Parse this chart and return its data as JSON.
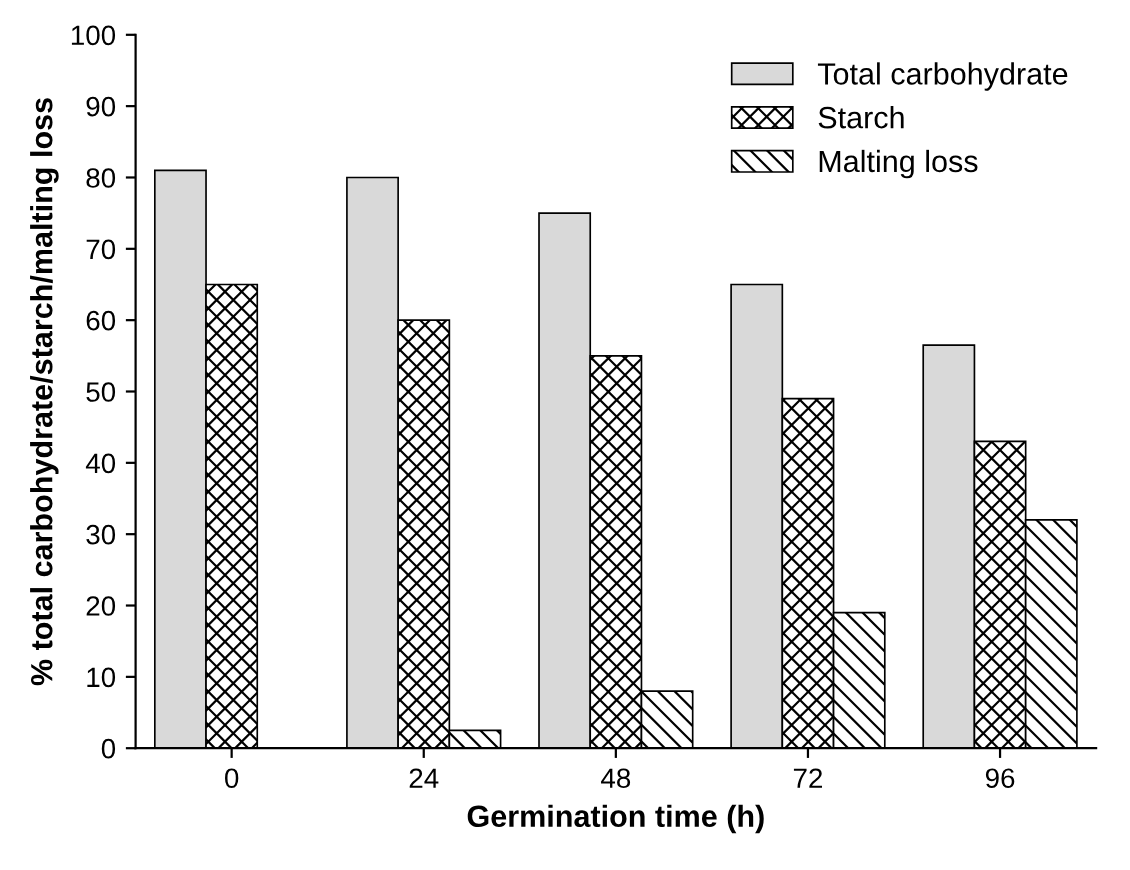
{
  "chart_data": {
    "type": "bar",
    "xlabel": "Germination time (h)",
    "ylabel": "% total carbohydrate/starch/malting loss",
    "categories": [
      "0",
      "24",
      "48",
      "72",
      "96"
    ],
    "series": [
      {
        "name": "Total carbohydrate",
        "color": "#d9d9d9",
        "values": [
          81,
          80,
          75,
          65,
          56.5
        ]
      },
      {
        "name": "Starch",
        "color": "#000000",
        "values": [
          65,
          60,
          55,
          49,
          43
        ]
      },
      {
        "name": "Malting loss",
        "color": "#000000",
        "values": [
          null,
          2.5,
          8,
          19,
          32
        ]
      }
    ],
    "ylim": [
      0,
      100
    ],
    "yticks": [
      0,
      10,
      20,
      30,
      40,
      50,
      60,
      70,
      80,
      90,
      100
    ],
    "grid": false,
    "legend": "top right"
  }
}
